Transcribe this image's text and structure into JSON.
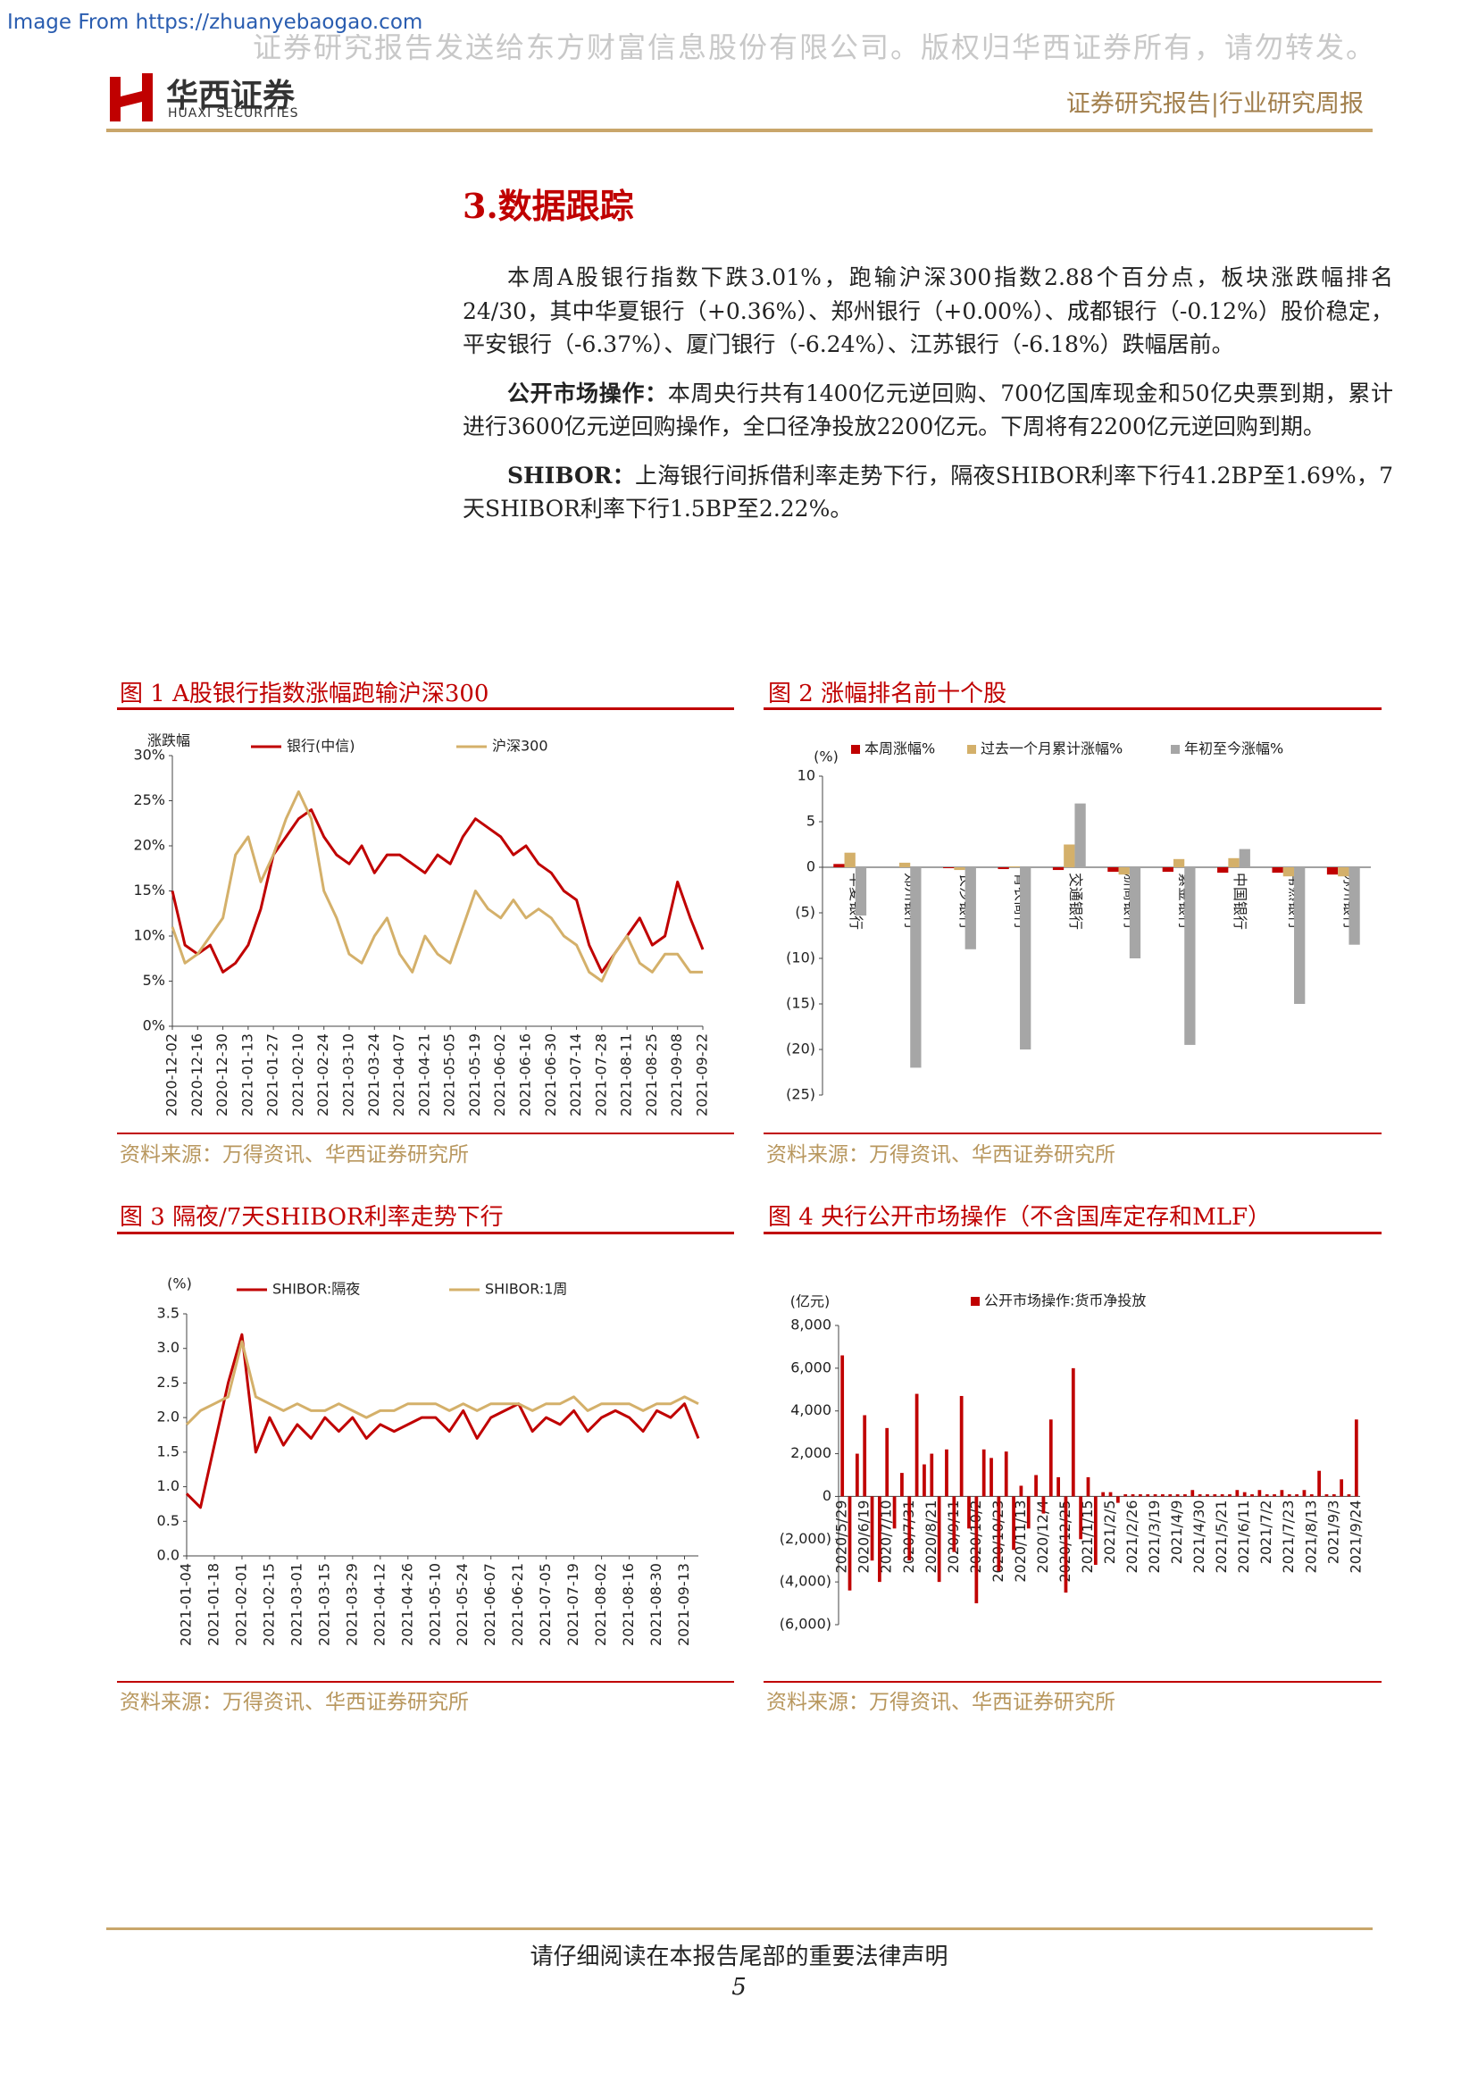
{
  "header": {
    "image_from": "Image From https://zhuanyebaogao.com",
    "watermark": "证券研究报告发送给东方财富信息股份有限公司。版权归华西证券所有，请勿转发。",
    "logo_cn": "华西证券",
    "logo_en": "HUAXI SECURITIES",
    "report_type": "证券研究报告|行业研究周报"
  },
  "section_title": "3.数据跟踪",
  "paragraphs": [
    {
      "lead": "",
      "text": "本周A股银行指数下跌3.01%，跑输沪深300指数2.88个百分点，板块涨跌幅排名24/30，其中华夏银行（+0.36%）、郑州银行（+0.00%）、成都银行（-0.12%）股价稳定，平安银行（-6.37%）、厦门银行（-6.24%）、江苏银行（-6.18%）跌幅居前。"
    },
    {
      "lead": "公开市场操作：",
      "text": "本周央行共有1400亿元逆回购、700亿国库现金和50亿央票到期，累计进行3600亿元逆回购操作，全口径净投放2200亿元。下周将有2200亿元逆回购到期。"
    },
    {
      "lead": "SHIBOR：",
      "text": "上海银行间拆借利率走势下行，隔夜SHIBOR利率下行41.2BP至1.69%，7天SHIBOR利率下行1.5BP至2.22%。"
    }
  ],
  "chart_data": [
    {
      "type": "line",
      "title": "图 1  A股银行指数涨幅跑输沪深300",
      "source": "资料来源：万得资讯、华西证券研究所",
      "y_label": "涨跌幅",
      "categories": [
        "2020-12-02",
        null,
        "2020-12-16",
        null,
        "2020-12-30",
        null,
        "2021-01-13",
        null,
        "2021-01-27",
        null,
        "2021-02-10",
        null,
        "2021-02-24",
        null,
        "2021-03-10",
        null,
        "2021-03-24",
        null,
        "2021-04-07",
        null,
        "2021-04-21",
        null,
        "2021-05-05",
        null,
        "2021-05-19",
        null,
        "2021-06-02",
        null,
        "2021-06-16",
        null,
        "2021-06-30",
        null,
        "2021-07-14",
        null,
        "2021-07-28",
        null,
        "2021-08-11",
        null,
        "2021-08-25",
        null,
        "2021-09-08",
        null,
        "2021-09-22"
      ],
      "series": [
        {
          "name": "银行(中信)",
          "color": "#c00000",
          "values": [
            15,
            9,
            8,
            9,
            6,
            7,
            9,
            13,
            19,
            21,
            23,
            24,
            21,
            19,
            18,
            20,
            17,
            19,
            19,
            18,
            17,
            19,
            18,
            21,
            23,
            22,
            21,
            19,
            20,
            18,
            17,
            15,
            14,
            9,
            6,
            8,
            10,
            12,
            9,
            10,
            16,
            12,
            8.5
          ]
        },
        {
          "name": "沪深300",
          "color": "#d4b06a",
          "values": [
            11,
            7,
            8,
            10,
            12,
            19,
            21,
            16,
            19,
            23,
            26,
            23,
            15,
            12,
            8,
            7,
            10,
            12,
            8,
            6,
            10,
            8,
            7,
            11,
            15,
            13,
            12,
            14,
            12,
            13,
            12,
            10,
            9,
            6,
            5,
            8,
            10,
            7,
            6,
            8,
            8,
            6,
            6
          ]
        }
      ],
      "ylim": [
        0,
        30
      ],
      "yticks": [
        {
          "value": 0,
          "label": "0%"
        },
        {
          "value": 5,
          "label": "5%"
        },
        {
          "value": 10,
          "label": "10%"
        },
        {
          "value": 15,
          "label": "15%"
        },
        {
          "value": 20,
          "label": "20%"
        },
        {
          "value": 25,
          "label": "25%"
        },
        {
          "value": 30,
          "label": "30%"
        }
      ]
    },
    {
      "type": "bar",
      "title": "图 2  涨幅排名前十个股",
      "source": "资料来源：万得资讯、华西证券研究所",
      "y_label": "(%)",
      "categories": [
        "华夏银行",
        "郑州银行",
        "长沙银行",
        "青农商行",
        "交通银行",
        "浙商银行",
        "紫金银行",
        "中国银行",
        "常熟银行",
        "苏州银行"
      ],
      "series": [
        {
          "name": "本周涨幅%",
          "color": "#c00000",
          "values": [
            0.36,
            0,
            -0.1,
            -0.2,
            -0.3,
            -0.5,
            -0.5,
            -0.6,
            -0.6,
            -0.8
          ]
        },
        {
          "name": "过去一个月累计涨幅%",
          "color": "#d4b06a",
          "values": [
            1.6,
            0.5,
            -0.3,
            0.1,
            2.5,
            -0.8,
            0.9,
            1,
            -1,
            -1
          ]
        },
        {
          "name": "年初至今涨幅%",
          "color": "#a6a6a6",
          "values": [
            -5.3,
            -22,
            -9,
            -20,
            7,
            -10,
            -19.5,
            2,
            -15,
            -8.5
          ]
        }
      ],
      "ylim": [
        -25,
        10
      ],
      "yticks": [
        10,
        5,
        0,
        {
          "value": -5,
          "label": "(5)"
        },
        {
          "value": -10,
          "label": "(10)"
        },
        {
          "value": -15,
          "label": "(15)"
        },
        {
          "value": -20,
          "label": "(20)"
        },
        {
          "value": -25,
          "label": "(25)"
        }
      ]
    },
    {
      "type": "line",
      "title": "图 3  隔夜/7天SHIBOR利率走势下行",
      "source": "资料来源：万得资讯、华西证券研究所",
      "y_label": "(%)",
      "categories": [
        "2021-01-04",
        null,
        "2021-01-18",
        null,
        "2021-02-01",
        null,
        "2021-02-15",
        null,
        "2021-03-01",
        null,
        "2021-03-15",
        null,
        "2021-03-29",
        null,
        "2021-04-12",
        null,
        "2021-04-26",
        null,
        "2021-05-10",
        null,
        "2021-05-24",
        null,
        "2021-06-07",
        null,
        "2021-06-21",
        null,
        "2021-07-05",
        null,
        "2021-07-19",
        null,
        "2021-08-02",
        null,
        "2021-08-16",
        null,
        "2021-08-30",
        null,
        "2021-09-13",
        null
      ],
      "series": [
        {
          "name": "SHIBOR:隔夜",
          "color": "#c00000",
          "values": [
            0.9,
            0.7,
            1.6,
            2.5,
            3.2,
            1.5,
            2.0,
            1.6,
            1.9,
            1.7,
            2.0,
            1.8,
            2.0,
            1.7,
            1.9,
            1.8,
            1.9,
            2.0,
            2.0,
            1.8,
            2.1,
            1.7,
            2.0,
            2.1,
            2.2,
            1.8,
            2.0,
            1.9,
            2.1,
            1.8,
            2.0,
            2.1,
            2.0,
            1.8,
            2.1,
            2.0,
            2.2,
            1.7
          ]
        },
        {
          "name": "SHIBOR:1周",
          "color": "#d4b06a",
          "values": [
            1.9,
            2.1,
            2.2,
            2.3,
            3.1,
            2.3,
            2.2,
            2.1,
            2.2,
            2.1,
            2.1,
            2.2,
            2.1,
            2.0,
            2.1,
            2.1,
            2.2,
            2.2,
            2.2,
            2.1,
            2.2,
            2.1,
            2.2,
            2.2,
            2.2,
            2.1,
            2.2,
            2.2,
            2.3,
            2.1,
            2.2,
            2.2,
            2.2,
            2.1,
            2.2,
            2.2,
            2.3,
            2.2
          ]
        }
      ],
      "ylim": [
        0,
        3.5
      ],
      "yticks": [
        {
          "value": 0,
          "label": "0.0"
        },
        0.5,
        {
          "value": 1,
          "label": "1.0"
        },
        1.5,
        {
          "value": 2,
          "label": "2.0"
        },
        2.5,
        {
          "value": 3,
          "label": "3.0"
        },
        3.5
      ]
    },
    {
      "type": "bar",
      "title": "图 4  央行公开市场操作（不含国库定存和MLF）",
      "source": "资料来源：万得资讯、华西证券研究所",
      "y_label": "(亿元)",
      "categories": [
        "2020/5/29",
        null,
        null,
        "2020/6/19",
        null,
        null,
        "2020/7/10",
        null,
        null,
        "2020/7/31",
        null,
        null,
        "2020/8/21",
        null,
        null,
        "2020/9/11",
        null,
        null,
        "2020/10/2",
        null,
        null,
        "2020/10/23",
        null,
        null,
        "2020/11/13",
        null,
        null,
        "2020/12/4",
        null,
        null,
        "2020/12/25",
        null,
        null,
        "2021/1/15",
        null,
        null,
        "2021/2/5",
        null,
        null,
        "2021/2/26",
        null,
        null,
        "2021/3/19",
        null,
        null,
        "2021/4/9",
        null,
        null,
        "2021/4/30",
        null,
        null,
        "2021/5/21",
        null,
        null,
        "2021/6/11",
        null,
        null,
        "2021/7/2",
        null,
        null,
        "2021/7/23",
        null,
        null,
        "2021/8/13",
        null,
        null,
        "2021/9/3",
        null,
        null,
        "2021/9/24"
      ],
      "series": [
        {
          "name": "公开市场操作:货币净投放",
          "color": "#c00000",
          "values": [
            6600,
            -4400,
            2000,
            3800,
            -3000,
            -4000,
            3200,
            -1500,
            1100,
            -3000,
            4800,
            1500,
            2000,
            -4000,
            2200,
            -2600,
            4700,
            -1500,
            -5000,
            2200,
            1800,
            -3500,
            2100,
            -2500,
            500,
            -1500,
            1000,
            -800,
            3600,
            900,
            -4500,
            6000,
            -2000,
            900,
            -3200,
            200,
            200,
            -300,
            100,
            100,
            100,
            100,
            100,
            100,
            100,
            100,
            100,
            300,
            100,
            100,
            100,
            100,
            100,
            300,
            200,
            100,
            300,
            100,
            100,
            300,
            100,
            100,
            300,
            100,
            1200,
            100,
            100,
            800,
            100,
            3600
          ]
        }
      ],
      "ylim": [
        -6000,
        8000
      ],
      "yticks": [
        {
          "value": 8000,
          "label": "8,000"
        },
        {
          "value": 6000,
          "label": "6,000"
        },
        {
          "value": 4000,
          "label": "4,000"
        },
        {
          "value": 2000,
          "label": "2,000"
        },
        0,
        {
          "value": -2000,
          "label": "(2,000)"
        },
        {
          "value": -4000,
          "label": "(4,000)"
        },
        {
          "value": -6000,
          "label": "(6,000)"
        }
      ]
    }
  ],
  "footer": {
    "notice": "请仔细阅读在本报告尾部的重要法律声明",
    "page": "5"
  }
}
